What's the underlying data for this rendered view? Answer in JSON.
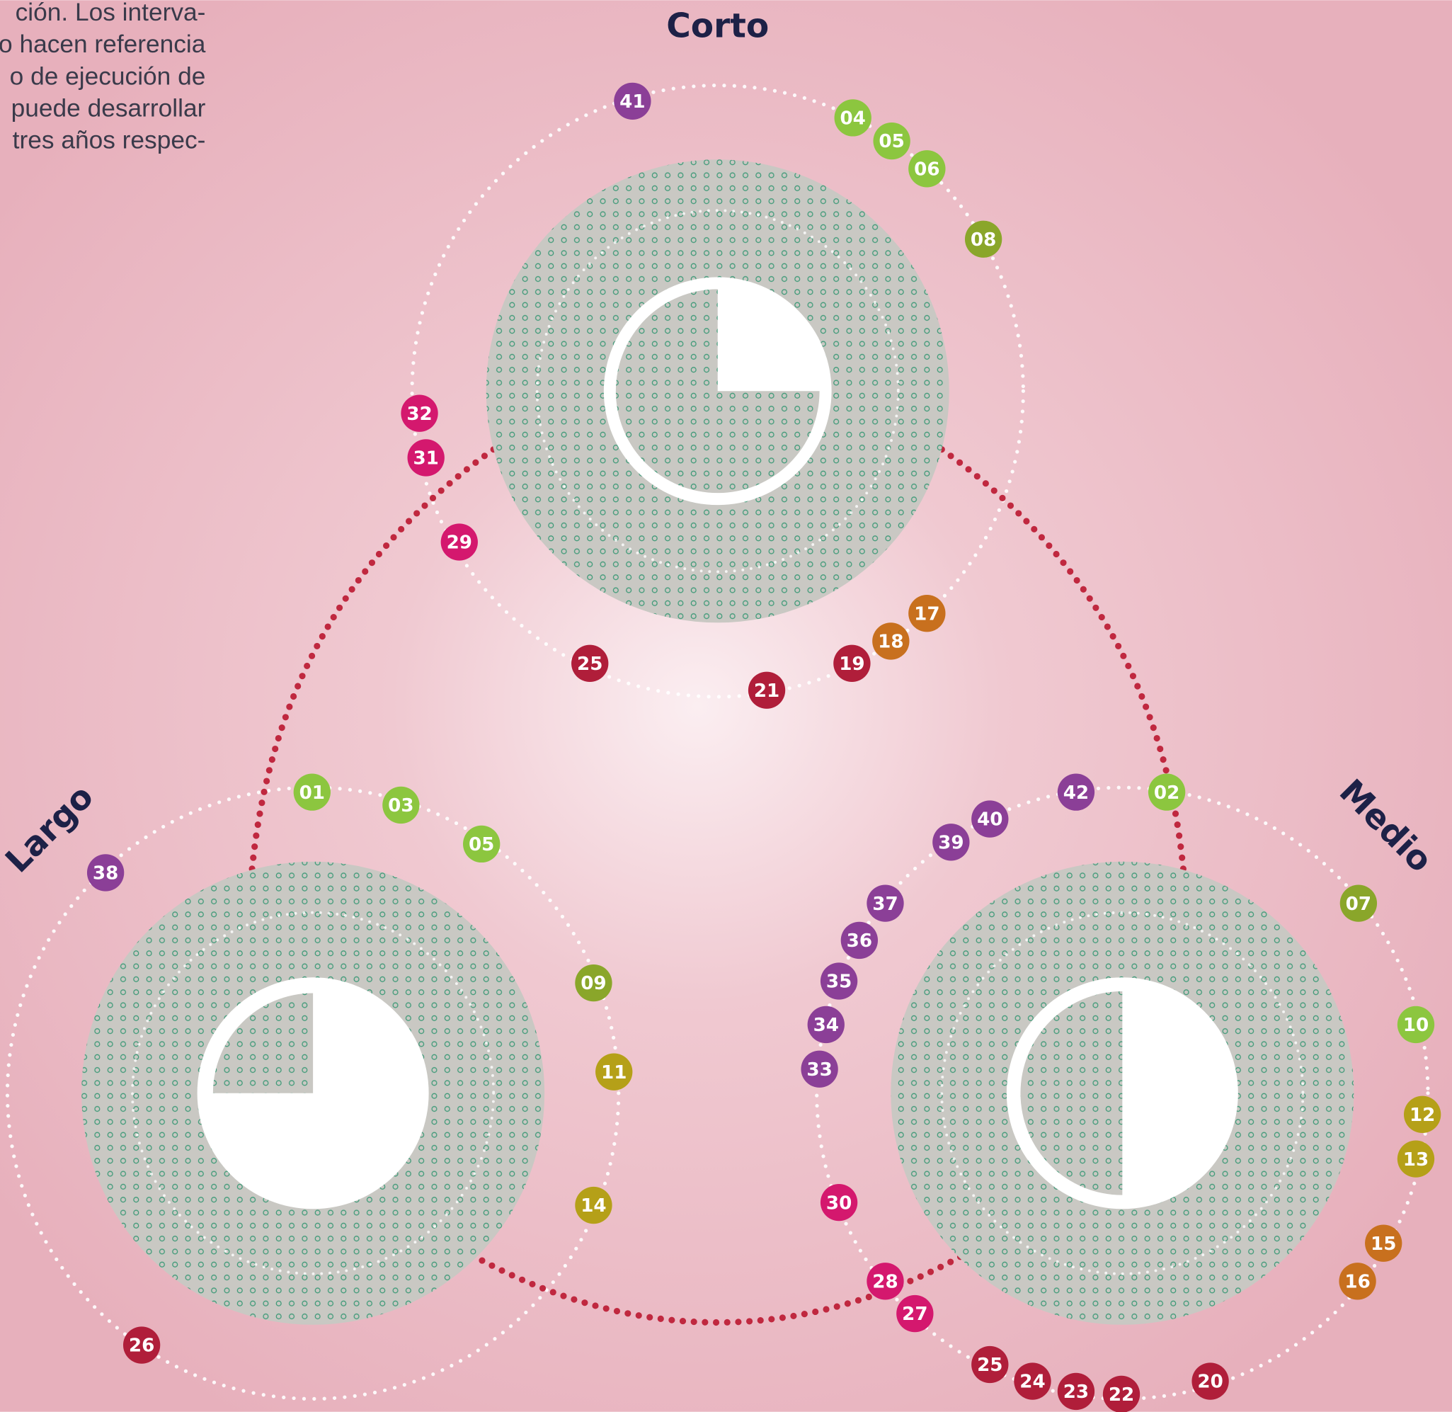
{
  "intro_text": [
    "ción. Los interva-",
    "o hacen referencia",
    "o de ejecución de",
    "puede desarrollar",
    "tres años respec-"
  ],
  "labels": {
    "short": "Corto",
    "long": "Largo",
    "medium": "Medio"
  },
  "markers": [
    {
      "label": "41",
      "color": "#8b3f97"
    },
    {
      "label": "04",
      "color": "#8cc63f"
    },
    {
      "label": "05",
      "color": "#8cc63f"
    },
    {
      "label": "06",
      "color": "#8cc63f"
    },
    {
      "label": "08",
      "color": "#8aa62a"
    },
    {
      "label": "32",
      "color": "#d4186e"
    },
    {
      "label": "31",
      "color": "#d4186e"
    },
    {
      "label": "29",
      "color": "#d4186e"
    },
    {
      "label": "17",
      "color": "#c8701e"
    },
    {
      "label": "18",
      "color": "#c8701e"
    },
    {
      "label": "19",
      "color": "#b01e3a"
    },
    {
      "label": "25",
      "color": "#b01e3a"
    },
    {
      "label": "21",
      "color": "#b01e3a"
    },
    {
      "label": "01",
      "color": "#8cc63f"
    },
    {
      "label": "03",
      "color": "#8cc63f"
    },
    {
      "label": "05",
      "color": "#8cc63f"
    },
    {
      "label": "42",
      "color": "#8b3f97"
    },
    {
      "label": "02",
      "color": "#8cc63f"
    },
    {
      "label": "40",
      "color": "#8b3f97"
    },
    {
      "label": "39",
      "color": "#8b3f97"
    },
    {
      "label": "38",
      "color": "#8b3f97"
    },
    {
      "label": "07",
      "color": "#8aa62a"
    },
    {
      "label": "37",
      "color": "#8b3f97"
    },
    {
      "label": "36",
      "color": "#8b3f97"
    },
    {
      "label": "35",
      "color": "#8b3f97"
    },
    {
      "label": "34",
      "color": "#8b3f97"
    },
    {
      "label": "33",
      "color": "#8b3f97"
    },
    {
      "label": "09",
      "color": "#8aa62a"
    },
    {
      "label": "10",
      "color": "#8cc63f"
    },
    {
      "label": "11",
      "color": "#b5a018"
    },
    {
      "label": "12",
      "color": "#b5a018"
    },
    {
      "label": "13",
      "color": "#b5a018"
    },
    {
      "label": "14",
      "color": "#b5a018"
    },
    {
      "label": "30",
      "color": "#d4186e"
    },
    {
      "label": "15",
      "color": "#c8701e"
    },
    {
      "label": "16",
      "color": "#c8701e"
    },
    {
      "label": "28",
      "color": "#d4186e"
    },
    {
      "label": "27",
      "color": "#d4186e"
    },
    {
      "label": "26",
      "color": "#b01e3a"
    },
    {
      "label": "25",
      "color": "#b01e3a"
    },
    {
      "label": "24",
      "color": "#b01e3a"
    },
    {
      "label": "23",
      "color": "#b01e3a"
    },
    {
      "label": "22",
      "color": "#b01e3a"
    },
    {
      "label": "20",
      "color": "#b01e3a"
    }
  ]
}
